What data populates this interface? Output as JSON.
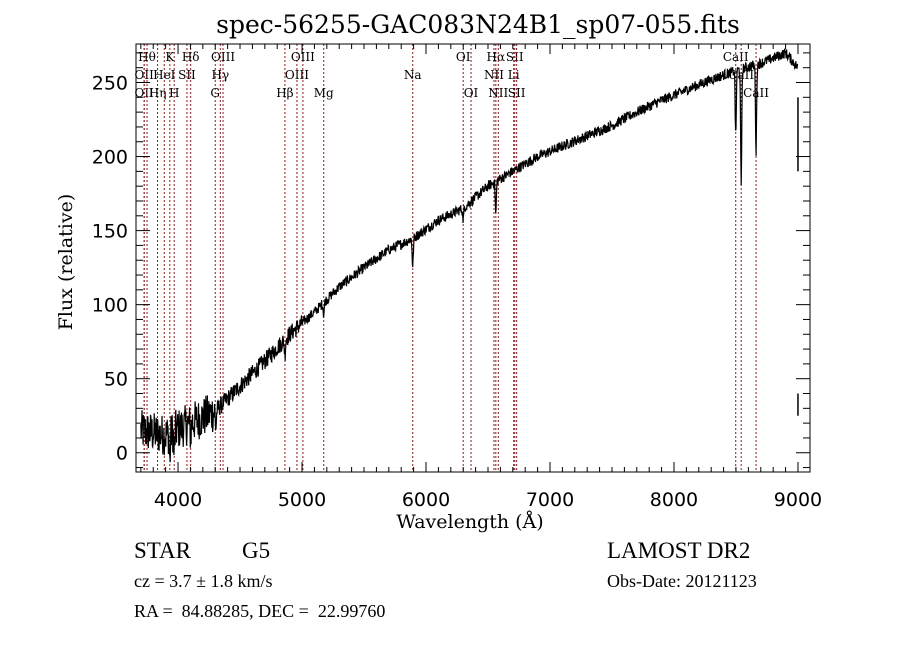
{
  "chart_data": {
    "type": "line",
    "title": "spec-56255-GAC083N24B1_sp07-055.fits",
    "xlabel": "Wavelength (Å)",
    "ylabel": "Flux (relative)",
    "xlim": [
      3661,
      9097
    ],
    "ylim": [
      -13,
      276
    ],
    "xticks": [
      4000,
      5000,
      6000,
      7000,
      8000,
      9000
    ],
    "xtick_labels": [
      "4000",
      "5000",
      "6000",
      "7000",
      "8000",
      "9000"
    ],
    "yticks": [
      0,
      50,
      100,
      150,
      200,
      250
    ],
    "ytick_labels": [
      "0",
      "50",
      "100",
      "150",
      "200",
      "250"
    ],
    "grid": false,
    "line_color": "#000000",
    "marker_color": "#8b1a1a",
    "spectrum_trend": [
      {
        "x": 3700,
        "y": 15
      },
      {
        "x": 3900,
        "y": 12
      },
      {
        "x": 4100,
        "y": 20
      },
      {
        "x": 4300,
        "y": 28
      },
      {
        "x": 4500,
        "y": 45
      },
      {
        "x": 4700,
        "y": 62
      },
      {
        "x": 4900,
        "y": 80
      },
      {
        "x": 5100,
        "y": 95
      },
      {
        "x": 5300,
        "y": 112
      },
      {
        "x": 5500,
        "y": 125
      },
      {
        "x": 5700,
        "y": 137
      },
      {
        "x": 5900,
        "y": 145
      },
      {
        "x": 6100,
        "y": 157
      },
      {
        "x": 6300,
        "y": 165
      },
      {
        "x": 6500,
        "y": 180
      },
      {
        "x": 6700,
        "y": 190
      },
      {
        "x": 6900,
        "y": 200
      },
      {
        "x": 7100,
        "y": 207
      },
      {
        "x": 7300,
        "y": 214
      },
      {
        "x": 7500,
        "y": 221
      },
      {
        "x": 7700,
        "y": 230
      },
      {
        "x": 7900,
        "y": 238
      },
      {
        "x": 8100,
        "y": 245
      },
      {
        "x": 8300,
        "y": 252
      },
      {
        "x": 8500,
        "y": 258
      },
      {
        "x": 8700,
        "y": 263
      },
      {
        "x": 8900,
        "y": 270
      },
      {
        "x": 9000,
        "y": 260
      }
    ],
    "absorption_features": [
      {
        "x": 3934,
        "depth": 18
      },
      {
        "x": 3969,
        "depth": 15
      },
      {
        "x": 4102,
        "depth": 8
      },
      {
        "x": 4305,
        "depth": 12
      },
      {
        "x": 4862,
        "depth": 10
      },
      {
        "x": 5175,
        "depth": 8
      },
      {
        "x": 5893,
        "depth": 20
      },
      {
        "x": 6300,
        "depth": 8
      },
      {
        "x": 6563,
        "depth": 22
      },
      {
        "x": 8498,
        "depth": 45
      },
      {
        "x": 8542,
        "depth": 80
      },
      {
        "x": 8662,
        "depth": 60
      }
    ],
    "line_markers": [
      {
        "x": 3727,
        "label": "OII",
        "row": 2
      },
      {
        "x": 3727,
        "label": "OII",
        "row": 3
      },
      {
        "x": 3750,
        "label": "Hθ",
        "row": 1
      },
      {
        "x": 3835,
        "label": "Hη",
        "row": 3
      },
      {
        "x": 3889,
        "label": "HeI",
        "row": 2
      },
      {
        "x": 3934,
        "label": "K",
        "row": 1
      },
      {
        "x": 3969,
        "label": "H",
        "row": 3
      },
      {
        "x": 4072,
        "label": "SII",
        "row": 2
      },
      {
        "x": 4102,
        "label": "Hδ",
        "row": 1
      },
      {
        "x": 4300,
        "label": "G",
        "row": 3
      },
      {
        "x": 4341,
        "label": "Hγ",
        "row": 2
      },
      {
        "x": 4363,
        "label": "OIII",
        "row": 1
      },
      {
        "x": 4862,
        "label": "Hβ",
        "row": 3
      },
      {
        "x": 4959,
        "label": "OIII",
        "row": 2
      },
      {
        "x": 5007,
        "label": "OIII",
        "row": 1
      },
      {
        "x": 5175,
        "label": "Mg",
        "row": 3
      },
      {
        "x": 5893,
        "label": "Na",
        "row": 2
      },
      {
        "x": 6300,
        "label": "OI",
        "row": 1
      },
      {
        "x": 6363,
        "label": "OI",
        "row": 3
      },
      {
        "x": 6548,
        "label": "NII",
        "row": 2
      },
      {
        "x": 6563,
        "label": "Hα",
        "row": 1
      },
      {
        "x": 6583,
        "label": "NII",
        "row": 3
      },
      {
        "x": 6707,
        "label": "Li",
        "row": 2
      },
      {
        "x": 6716,
        "label": "SII",
        "row": 1
      },
      {
        "x": 6731,
        "label": "SII",
        "row": 3
      },
      {
        "x": 8498,
        "label": "CaII",
        "row": 1
      },
      {
        "x": 8542,
        "label": "CaII",
        "row": 2
      },
      {
        "x": 8662,
        "label": "CaII",
        "row": 3
      }
    ]
  },
  "info": {
    "object_class": "STAR",
    "subclass": "G5",
    "survey": "LAMOST DR2",
    "redshift": "cz = 3.7 ± 1.8 km/s",
    "obs_date": "Obs-Date: 20121123",
    "coords": "RA =  84.88285, DEC =  22.99760"
  }
}
